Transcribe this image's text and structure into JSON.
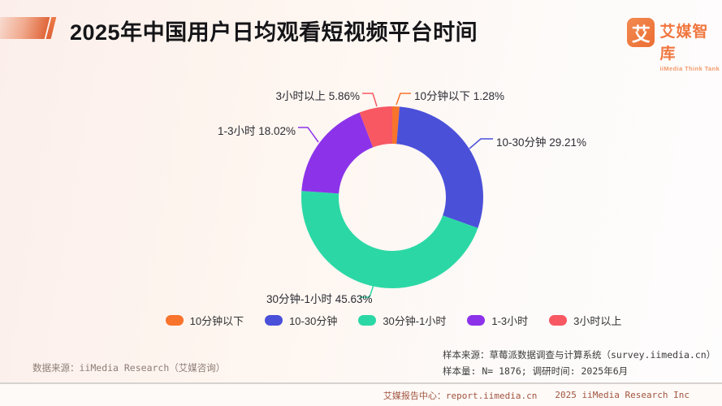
{
  "page": {
    "title": "2025年中国用户日均观看短视频平台时间"
  },
  "logo": {
    "glyph": "艾",
    "name": "艾媒智库",
    "subtitle": "iiMedia Think Tank"
  },
  "chart_data": {
    "type": "pie",
    "donut": true,
    "title": "2025年中国用户日均观看短视频平台时间",
    "unit": "%",
    "legend_position": "bottom",
    "slices": [
      {
        "label": "10分钟以下",
        "value": 1.28,
        "color": "#f8732b",
        "callout": "10分钟以下 1.28%"
      },
      {
        "label": "10-30分钟",
        "value": 29.21,
        "color": "#4b50d9",
        "callout": "10-30分钟 29.21%"
      },
      {
        "label": "30分钟-1小时",
        "value": 45.63,
        "color": "#2bd8a5",
        "callout": "30分钟-1小时 45.63%"
      },
      {
        "label": "1-3小时",
        "value": 18.02,
        "color": "#8c33ea",
        "callout": "1-3小时 18.02%"
      },
      {
        "label": "3小时以上",
        "value": 5.86,
        "color": "#f75862",
        "callout": "3小时以上 5.86%"
      }
    ]
  },
  "footnotes": {
    "data_source": "数据来源：iiMedia Research（艾媒咨询）",
    "sample_source": "样本来源：草莓派数据调查与计算系统（survey.iimedia.cn）",
    "sample_info": "样本量: N= 1876; 调研时间: 2025年6月"
  },
  "footer": {
    "report_center": "艾媒报告中心：report.iimedia.cn",
    "copyright": "2025 iiMedia Research Inc"
  }
}
